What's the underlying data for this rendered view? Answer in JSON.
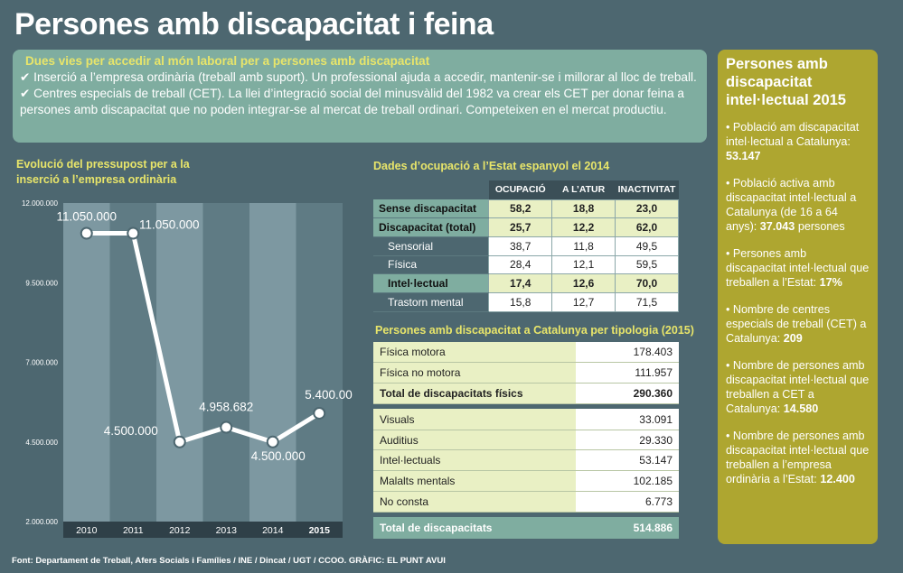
{
  "title": "Persones amb discapacitat i feina",
  "intro": {
    "heading": "Dues vies per accedir al món laboral per a persones amb discapacitat",
    "item1": "✔ Inserció a l’empresa ordinària (treball amb suport). Un professional ajuda a accedir, mantenir-se i millorar al lloc de treball.",
    "item2": "✔ Centres especials de treball (CET). La llei d’integració social del minusvàlid del 1982 va crear els CET per donar feina a persones amb discapacitat que no poden integrar-se al mercat de treball ordinari. Competeixen en el mercat productiu."
  },
  "chart_title": "Evolució del pressupost per a la inserció a l’empresa ordinària",
  "chart_data": {
    "type": "line",
    "x": [
      "2010",
      "2011",
      "2012",
      "2013",
      "2014",
      "2015"
    ],
    "values": [
      11050000,
      11050000,
      4500000,
      4958682,
      4500000,
      5400000
    ],
    "value_labels": [
      "11.050.000",
      "11.050.000",
      "4.500.000",
      "4.958.682",
      "4.500.000",
      "5.400.000"
    ],
    "yticks": [
      "2.000.000",
      "4.500.000",
      "7.000.000",
      "9.500.000",
      "12.000.000"
    ],
    "ylim": [
      2000000,
      12000000
    ]
  },
  "table1": {
    "title": "Dades d’ocupació a l’Estat espanyol el 2014",
    "headers": [
      "OCUPACIÓ",
      "A L’ATUR",
      "INACTIVITAT"
    ],
    "rows": [
      {
        "label": "Sense discapacitat",
        "values": [
          "58,2",
          "18,8",
          "23,0"
        ]
      },
      {
        "label": "Discapacitat (total)",
        "values": [
          "25,7",
          "12,2",
          "62,0"
        ]
      },
      {
        "label": "Sensorial",
        "values": [
          "38,7",
          "11,8",
          "49,5"
        ]
      },
      {
        "label": "Física",
        "values": [
          "28,4",
          "12,1",
          "59,5"
        ]
      },
      {
        "label": "Intel·lectual",
        "values": [
          "17,4",
          "12,6",
          "70,0"
        ]
      },
      {
        "label": "Trastorn mental",
        "values": [
          "15,8",
          "12,7",
          "71,5"
        ]
      }
    ]
  },
  "table2": {
    "title": "Persones amb discapacitat a Catalunya per tipologia (2015)",
    "rows": [
      {
        "label": "Física motora",
        "value": "178.403"
      },
      {
        "label": "Física no motora",
        "value": "111.957"
      },
      {
        "label": "Total de discapacitats físics",
        "value": "290.360"
      },
      {
        "label": "Visuals",
        "value": "33.091"
      },
      {
        "label": "Auditius",
        "value": "29.330"
      },
      {
        "label": "Intel·lectuals",
        "value": "53.147"
      },
      {
        "label": "Malalts mentals",
        "value": "102.185"
      },
      {
        "label": "No consta",
        "value": "6.773"
      },
      {
        "label": "Total  de discapacitats",
        "value": "514.886"
      }
    ]
  },
  "side": {
    "title": "Persones amb discapacitat intel·lectual 2015",
    "items": [
      {
        "text": "• Població am discapacitat intel·lectual a Catalunya: ",
        "value": "53.147",
        "suffix": ""
      },
      {
        "text": "• Població activa amb discapacitat intel·lectual a Catalunya (de 16 a 64 anys): ",
        "value": "37.043",
        "suffix": " persones"
      },
      {
        "text": "• Persones amb discapacitat intel·lectual que treballen a l’Estat: ",
        "value": "17%",
        "suffix": ""
      },
      {
        "text": "• Nombre de centres especials de treball (CET) a Catalunya: ",
        "value": "209",
        "suffix": ""
      },
      {
        "text": "• Nombre de persones amb discapacitat intel·lectual que treballen a CET a Catalunya: ",
        "value": "14.580",
        "suffix": ""
      },
      {
        "text": "• Nombre de persones amb discapacitat intel·lectual que treballen a l’empresa ordinària a l’Estat: ",
        "value": "12.400",
        "suffix": ""
      }
    ]
  },
  "footer": "Font: Departament de Treball, Afers Socials i Famílies / INE /  Dincat / UGT / CCOO. GRÀFIC: EL PUNT AVUI",
  "colors": {
    "background": "#4d6770",
    "accent_yellow": "#e8e56a",
    "teal": "#7fada0",
    "olive": "#aea630"
  }
}
